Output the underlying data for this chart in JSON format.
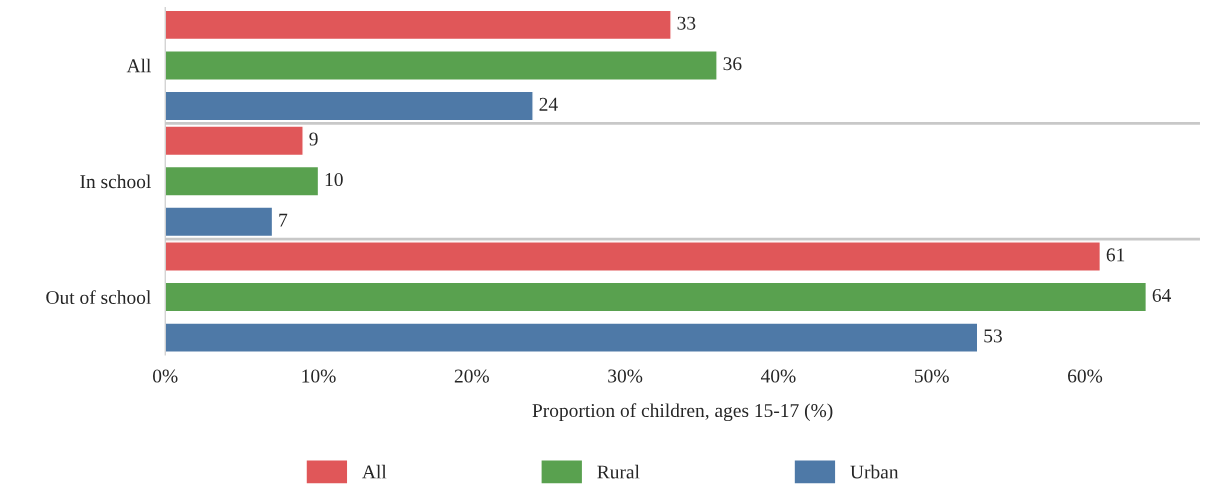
{
  "chart_data": {
    "type": "bar",
    "orientation": "horizontal",
    "xlabel": "Proportion of children, ages 15-17 (%)",
    "categories": [
      "All",
      "In school",
      "Out of school"
    ],
    "series": [
      {
        "name": "All",
        "color": "#e05759",
        "values": [
          33,
          9,
          61
        ]
      },
      {
        "name": "Rural",
        "color": "#59a14f",
        "values": [
          36,
          10,
          64
        ]
      },
      {
        "name": "Urban",
        "color": "#4e79a7",
        "values": [
          24,
          7,
          53
        ]
      }
    ],
    "xlim": [
      0,
      67.5
    ],
    "xticks": [
      {
        "value": 0,
        "label": "0%"
      },
      {
        "value": 10,
        "label": "10%"
      },
      {
        "value": 20,
        "label": "20%"
      },
      {
        "value": 30,
        "label": "30%"
      },
      {
        "value": 40,
        "label": "40%"
      },
      {
        "value": 50,
        "label": "50%"
      },
      {
        "value": 60,
        "label": "60%"
      }
    ],
    "data_labels": true,
    "grid": "y",
    "legend": "bottom"
  }
}
